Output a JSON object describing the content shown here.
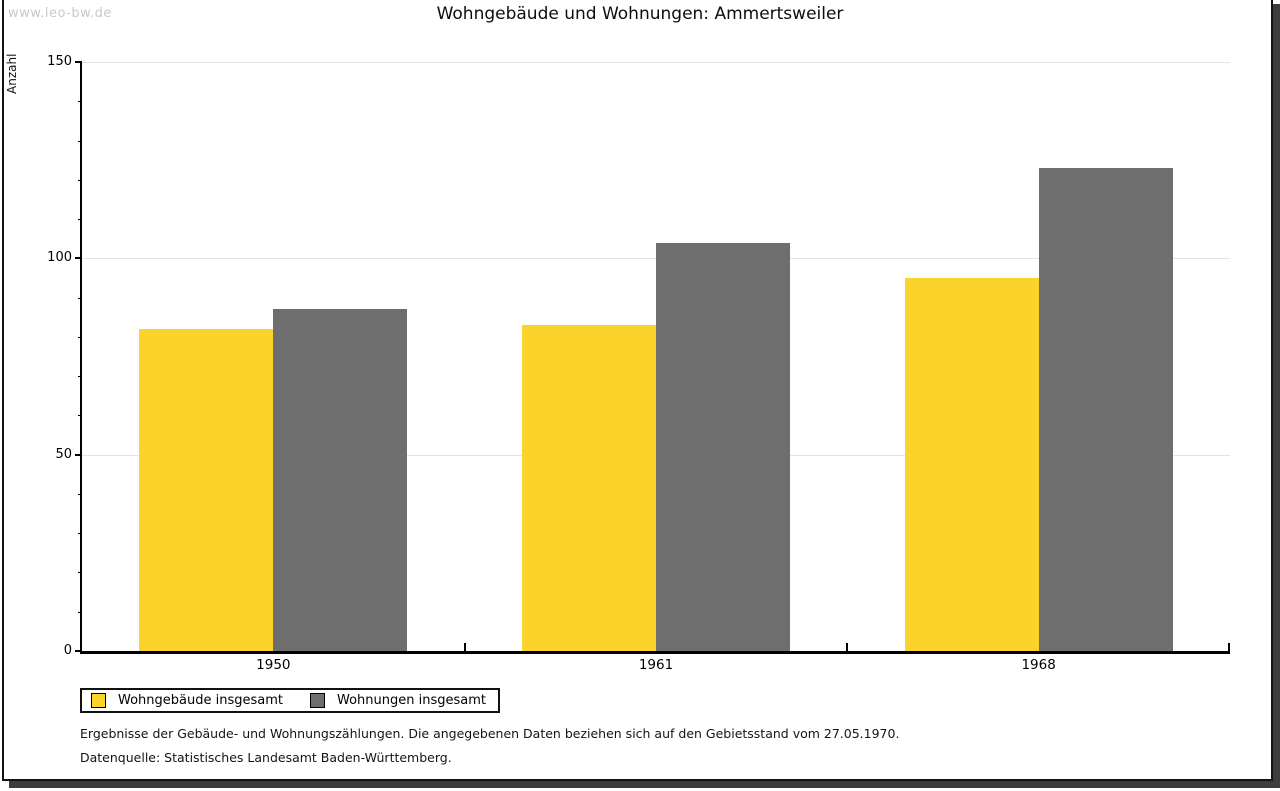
{
  "watermark": "www.leo-bw.de",
  "title": "Wohngebäude und Wohnungen: Ammertsweiler",
  "chart_data": {
    "type": "bar",
    "title": "Wohngebäude und Wohnungen: Ammertsweiler",
    "ylabel": "Anzahl",
    "xlabel": "",
    "categories": [
      "1950",
      "1961",
      "1968"
    ],
    "series": [
      {
        "name": "Wohngebäude insgesamt",
        "color": "#FCD32B",
        "values": [
          82,
          83,
          95
        ]
      },
      {
        "name": "Wohnungen insgesamt",
        "color": "#6E6E6E",
        "values": [
          87,
          104,
          123
        ]
      }
    ],
    "ylim": [
      0,
      150
    ],
    "yticks": [
      0,
      50,
      100,
      150
    ],
    "minor_tick_step": 10,
    "grid": true,
    "legend_position": "bottom-left"
  },
  "footer": {
    "line1": "Ergebnisse der Gebäude- und Wohnungszählungen. Die angegebenen Daten beziehen sich auf den Gebietsstand vom 27.05.1970.",
    "line2": "Datenquelle: Statistisches Landesamt Baden-Württemberg."
  },
  "colors": {
    "axis": "#000000",
    "grid": "#e3e3e3",
    "watermark": "#c9c9c9",
    "frame_border": "#141414",
    "frame_shadow": "#3d3d3d"
  }
}
